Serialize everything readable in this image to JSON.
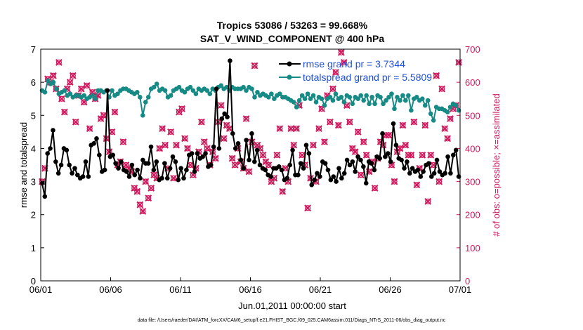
{
  "chart_data": {
    "type": "line",
    "title": "Tropics 53086 / 53263 = 99.668%",
    "subtitle": "SAT_V_WIND_COMPONENT @ 400 hPa",
    "xlabel": "Jun.01,2011 00:00:00 start",
    "ylabel": "rmse and totalspread",
    "ylabel_right": "# of obs: o=possible; ×=assimilated",
    "footer": "data file: /Users/raeder/DAI/ATM_forcXX/CAM6_setup/f.e21.FHIST_BGC.f09_025.CAM6assim.011/Diags_NTrS_2011-06/obs_diag_output.nc",
    "x_tick_labels": [
      "06/01",
      "06/06",
      "06/11",
      "06/16",
      "06/21",
      "06/26",
      "07/01"
    ],
    "x_tick_days": [
      0,
      5,
      10,
      15,
      20,
      25,
      30
    ],
    "xlim": [
      0,
      30
    ],
    "ylim": [
      0,
      7
    ],
    "y_ticks": [
      0,
      1,
      2,
      3,
      4,
      5,
      6,
      7
    ],
    "ylim_right": [
      0,
      700
    ],
    "y_ticks_right": [
      0,
      100,
      200,
      300,
      400,
      500,
      600,
      700
    ],
    "legend_position": "top-right",
    "series": [
      {
        "name": "rmse grand pr = 3.7344",
        "color": "#000000",
        "marker": "circle",
        "values": [
          2.95,
          2.55,
          3.85,
          4.0,
          4.55,
          3.6,
          3.25,
          3.5,
          4.0,
          3.95,
          3.5,
          3.25,
          3.4,
          3.2,
          3.1,
          3.15,
          3.6,
          3.15,
          4.1,
          4.15,
          4.3,
          3.8,
          3.3,
          3.35,
          5.75,
          3.75,
          3.8,
          3.55,
          3.4,
          3.6,
          3.35,
          3.3,
          3.15,
          3.5,
          3.2,
          3.35,
          3.1,
          3.65,
          3.55,
          3.55,
          4.05,
          3.35,
          3.6,
          3.05,
          3.1,
          3.55,
          3.1,
          3.4,
          3.75,
          3.6,
          3.05,
          3.4,
          3.1,
          3.35,
          3.8,
          3.85,
          3.3,
          3.85,
          3.7,
          3.75,
          3.85,
          3.45,
          3.5,
          4.05,
          5.8,
          4.0,
          4.9,
          5.05,
          4.95,
          6.65,
          4.45,
          4.0,
          4.15,
          3.65,
          3.4,
          4.25,
          3.65,
          4.45,
          3.6,
          3.95,
          3.5,
          3.4,
          3.35,
          3.2,
          3.15,
          3.4,
          3.4,
          3.45,
          3.35,
          3.05,
          3.1,
          3.5,
          3.95,
          3.2,
          3.2,
          3.55,
          3.4,
          4.1,
          3.85,
          2.9,
          3.05,
          3.25,
          3.15,
          3.6,
          3.55,
          3.35,
          3.05,
          3.15,
          3.0,
          3.4,
          3.1,
          3.25,
          3.65,
          3.5,
          3.6,
          3.3,
          3.75,
          3.65,
          3.45,
          2.95,
          3.6,
          3.55,
          3.35,
          3.75,
          3.7,
          4.45,
          3.75,
          3.85,
          3.6,
          4.75,
          4.1,
          3.7,
          3.65,
          3.4,
          3.6,
          3.25,
          3.4,
          3.3,
          3.35,
          3.15,
          3.3,
          3.5,
          3.55,
          3.15,
          3.25,
          3.65,
          3.3,
          3.2,
          3.25,
          3.75,
          3.25,
          3.8,
          3.95,
          3.15
        ]
      },
      {
        "name": "totalspread grand pr = 5.5809",
        "color": "#168a84",
        "marker": "circle",
        "values": [
          5.75,
          5.7,
          6.05,
          5.95,
          6.0,
          5.8,
          5.65,
          5.7,
          5.75,
          5.6,
          5.65,
          5.55,
          5.6,
          5.6,
          5.55,
          5.6,
          5.5,
          5.55,
          5.6,
          5.5,
          5.75,
          5.75,
          5.7,
          5.75,
          5.55,
          5.75,
          5.6,
          5.65,
          5.75,
          5.8,
          5.8,
          5.75,
          5.7,
          5.65,
          5.7,
          5.55,
          5.0,
          5.4,
          5.55,
          5.8,
          5.85,
          5.95,
          5.75,
          5.8,
          5.75,
          5.55,
          5.6,
          5.75,
          5.8,
          5.85,
          5.75,
          5.7,
          5.8,
          5.85,
          5.75,
          5.65,
          5.8,
          5.75,
          5.8,
          5.75,
          5.65,
          5.8,
          5.75,
          5.85,
          5.9,
          5.8,
          5.85,
          5.75,
          5.85,
          5.8,
          5.8,
          5.8,
          5.85,
          5.75,
          5.85,
          5.8,
          5.55,
          5.7,
          5.6,
          5.65,
          5.6,
          5.55,
          5.65,
          5.5,
          5.6,
          5.65,
          5.55,
          5.55,
          5.5,
          5.45,
          5.4,
          5.25,
          5.45,
          5.6,
          5.5,
          5.65,
          5.5,
          5.6,
          5.4,
          5.55,
          5.5,
          5.3,
          5.5,
          5.55,
          5.45,
          5.65,
          5.5,
          5.55,
          5.4,
          5.6,
          5.55,
          5.35,
          5.55,
          5.5,
          5.6,
          5.45,
          5.6,
          5.35,
          5.55,
          5.35,
          5.6,
          5.55,
          5.35,
          5.45,
          5.55,
          5.65,
          5.2,
          5.55,
          5.45,
          5.6,
          5.45,
          5.6,
          5.15,
          5.5,
          5.55,
          5.45,
          5.5,
          5.3,
          5.45,
          5.05,
          4.85,
          5.25,
          5.2,
          5.2,
          5.15,
          5.1,
          5.25,
          5.35,
          5.3,
          5.15
        ]
      },
      {
        "name": "# of obs possible",
        "color": "#cc1a5c",
        "marker": "circle-open",
        "axis": "right",
        "values": [
          300,
          340,
          610,
          600,
          620,
          580,
          660,
          550,
          510,
          580,
          600,
          620,
          480,
          560,
          580,
          540,
          590,
          460,
          570,
          550,
          560,
          490,
          500,
          430,
          390,
          450,
          510,
          350,
          360,
          420,
          350,
          340,
          330,
          280,
          270,
          230,
          210,
          300,
          250,
          280,
          320,
          310,
          400,
          460,
          410,
          340,
          450,
          310,
          410,
          510,
          520,
          430,
          400,
          350,
          320,
          340,
          390,
          480,
          420,
          400,
          350,
          390,
          370,
          480,
          530,
          430,
          470,
          460,
          370,
          350,
          400,
          360,
          340,
          490,
          330,
          420,
          650,
          410,
          400,
          380,
          360,
          350,
          300,
          310,
          380,
          460,
          270,
          340,
          300,
          460,
          410,
          460,
          530,
          380,
          350,
          220,
          310,
          410,
          300,
          460,
          520,
          420,
          560,
          480,
          580,
          630,
          470,
          690,
          660,
          530,
          480,
          400,
          390,
          450,
          320,
          420,
          380,
          330,
          360,
          280,
          370,
          420,
          410,
          440,
          440,
          350,
          300,
          390,
          400,
          470,
          410,
          380,
          380,
          480,
          290,
          340,
          380,
          470,
          240,
          380,
          350,
          620,
          300,
          580,
          460,
          430,
          490,
          520,
          530,
          660
        ]
      },
      {
        "name": "# of obs assimilated",
        "color": "#cc1a5c",
        "marker": "x",
        "axis": "right",
        "values": [
          300,
          340,
          610,
          600,
          620,
          580,
          660,
          550,
          510,
          580,
          600,
          620,
          480,
          560,
          580,
          540,
          590,
          460,
          570,
          550,
          560,
          490,
          500,
          430,
          390,
          450,
          510,
          350,
          360,
          420,
          350,
          340,
          330,
          280,
          270,
          230,
          210,
          300,
          250,
          280,
          320,
          310,
          400,
          460,
          410,
          340,
          450,
          310,
          410,
          510,
          520,
          430,
          400,
          350,
          320,
          340,
          390,
          480,
          420,
          400,
          350,
          390,
          370,
          480,
          530,
          430,
          470,
          460,
          370,
          350,
          400,
          360,
          340,
          490,
          330,
          420,
          650,
          410,
          400,
          380,
          360,
          350,
          300,
          310,
          380,
          460,
          270,
          340,
          300,
          460,
          410,
          460,
          530,
          380,
          350,
          220,
          310,
          410,
          300,
          460,
          520,
          420,
          560,
          480,
          580,
          630,
          470,
          690,
          660,
          530,
          480,
          400,
          390,
          450,
          320,
          420,
          380,
          330,
          360,
          280,
          370,
          420,
          410,
          440,
          440,
          350,
          300,
          390,
          400,
          470,
          410,
          380,
          380,
          480,
          290,
          340,
          380,
          470,
          240,
          380,
          350,
          620,
          300,
          580,
          460,
          430,
          490,
          520,
          530,
          660
        ]
      }
    ]
  }
}
